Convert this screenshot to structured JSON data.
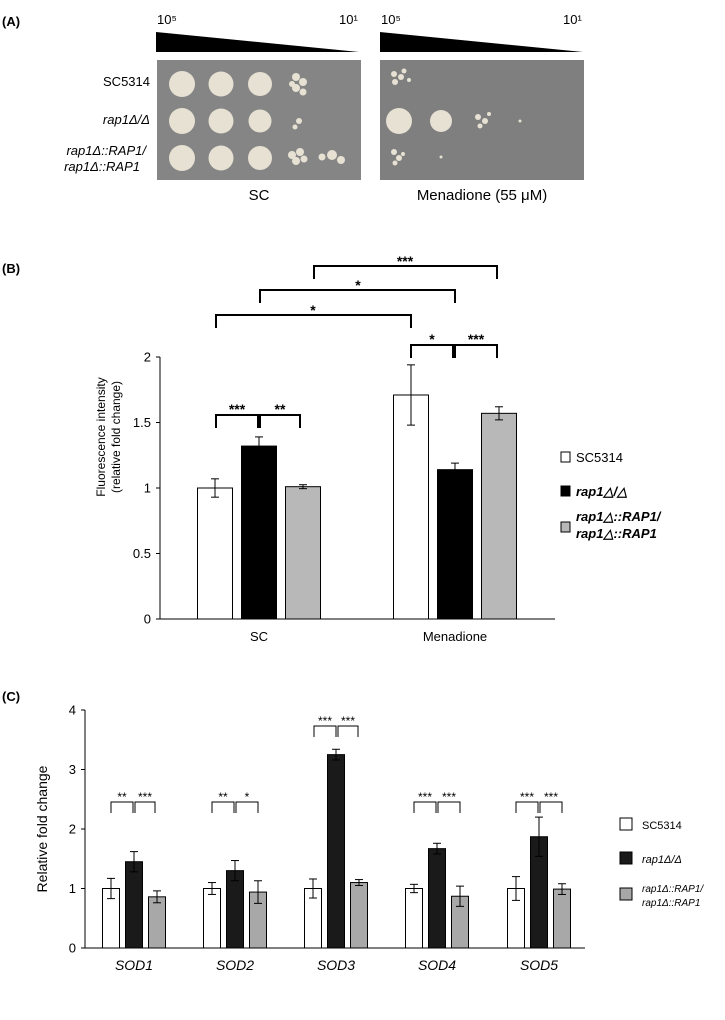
{
  "panel_a": {
    "label": "(A)",
    "dilution_high": "10⁵",
    "dilution_low": "10¹",
    "strains": [
      "SC5314",
      "rap1Δ/Δ",
      "rap1Δ::RAP1/",
      "rap1Δ::RAP1"
    ],
    "conditions": [
      "SC",
      "Menadione (55 μM)"
    ],
    "colors": {
      "plate": "#858585",
      "colony": "#e6e1d2"
    }
  },
  "panel_b": {
    "label": "(B)",
    "legend": [
      "SC5314",
      "rap1△/△",
      "rap1△::RAP1/",
      "rap1△::RAP1"
    ],
    "significance": [
      "***",
      "*",
      "*",
      "***",
      "**",
      "*",
      "***"
    ]
  },
  "panel_c": {
    "label": "(C)",
    "legend": [
      "SC5314",
      "rap1Δ/Δ",
      "rap1Δ::RAP1/",
      "rap1Δ::RAP1"
    ],
    "significance": [
      "**",
      "***",
      "**",
      "*",
      "***",
      "***",
      "***",
      "***",
      "***",
      "***"
    ]
  },
  "chart_data": [
    {
      "type": "bar",
      "panel": "B",
      "categories": [
        "SC",
        "Menadione"
      ],
      "ylabel": "Fluorescence intensity (relative fold change)",
      "ylim": [
        0,
        2
      ],
      "yticks": [
        0,
        0.5,
        1,
        1.5,
        2
      ],
      "yticklabels": [
        "0",
        "0.5",
        "1",
        "1.5",
        "2"
      ],
      "colors": [
        "#ffffff",
        "#000000",
        "#b8b8b8"
      ],
      "series": [
        {
          "name": "SC5314",
          "values": [
            1.0,
            1.71
          ],
          "errors": [
            0.07,
            0.23
          ]
        },
        {
          "name": "rap1△/△",
          "values": [
            1.32,
            1.14
          ],
          "errors": [
            0.07,
            0.05
          ]
        },
        {
          "name": "rap1△::RAP1/rap1△::RAP1",
          "values": [
            1.01,
            1.57
          ],
          "errors": [
            0.015,
            0.05
          ]
        }
      ]
    },
    {
      "type": "bar",
      "panel": "C",
      "categories": [
        "SOD1",
        "SOD2",
        "SOD3",
        "SOD4",
        "SOD5"
      ],
      "ylabel": "Relative fold change",
      "ylim": [
        0,
        4
      ],
      "yticks": [
        0,
        1,
        2,
        3,
        4
      ],
      "yticklabels": [
        "0",
        "1",
        "2",
        "3",
        "4"
      ],
      "colors": [
        "#ffffff",
        "#1a1a1a",
        "#a8a8a8"
      ],
      "series": [
        {
          "name": "SC5314",
          "values": [
            1.0,
            1.0,
            1.0,
            1.0,
            1.0
          ],
          "errors": [
            0.17,
            0.1,
            0.16,
            0.07,
            0.2
          ]
        },
        {
          "name": "rap1Δ/Δ",
          "values": [
            1.45,
            1.3,
            3.25,
            1.67,
            1.87
          ],
          "errors": [
            0.17,
            0.17,
            0.09,
            0.09,
            0.33
          ]
        },
        {
          "name": "rap1Δ::RAP1/rap1Δ::RAP1",
          "values": [
            0.86,
            0.94,
            1.1,
            0.87,
            0.99
          ],
          "errors": [
            0.1,
            0.19,
            0.05,
            0.17,
            0.09
          ]
        }
      ]
    }
  ]
}
